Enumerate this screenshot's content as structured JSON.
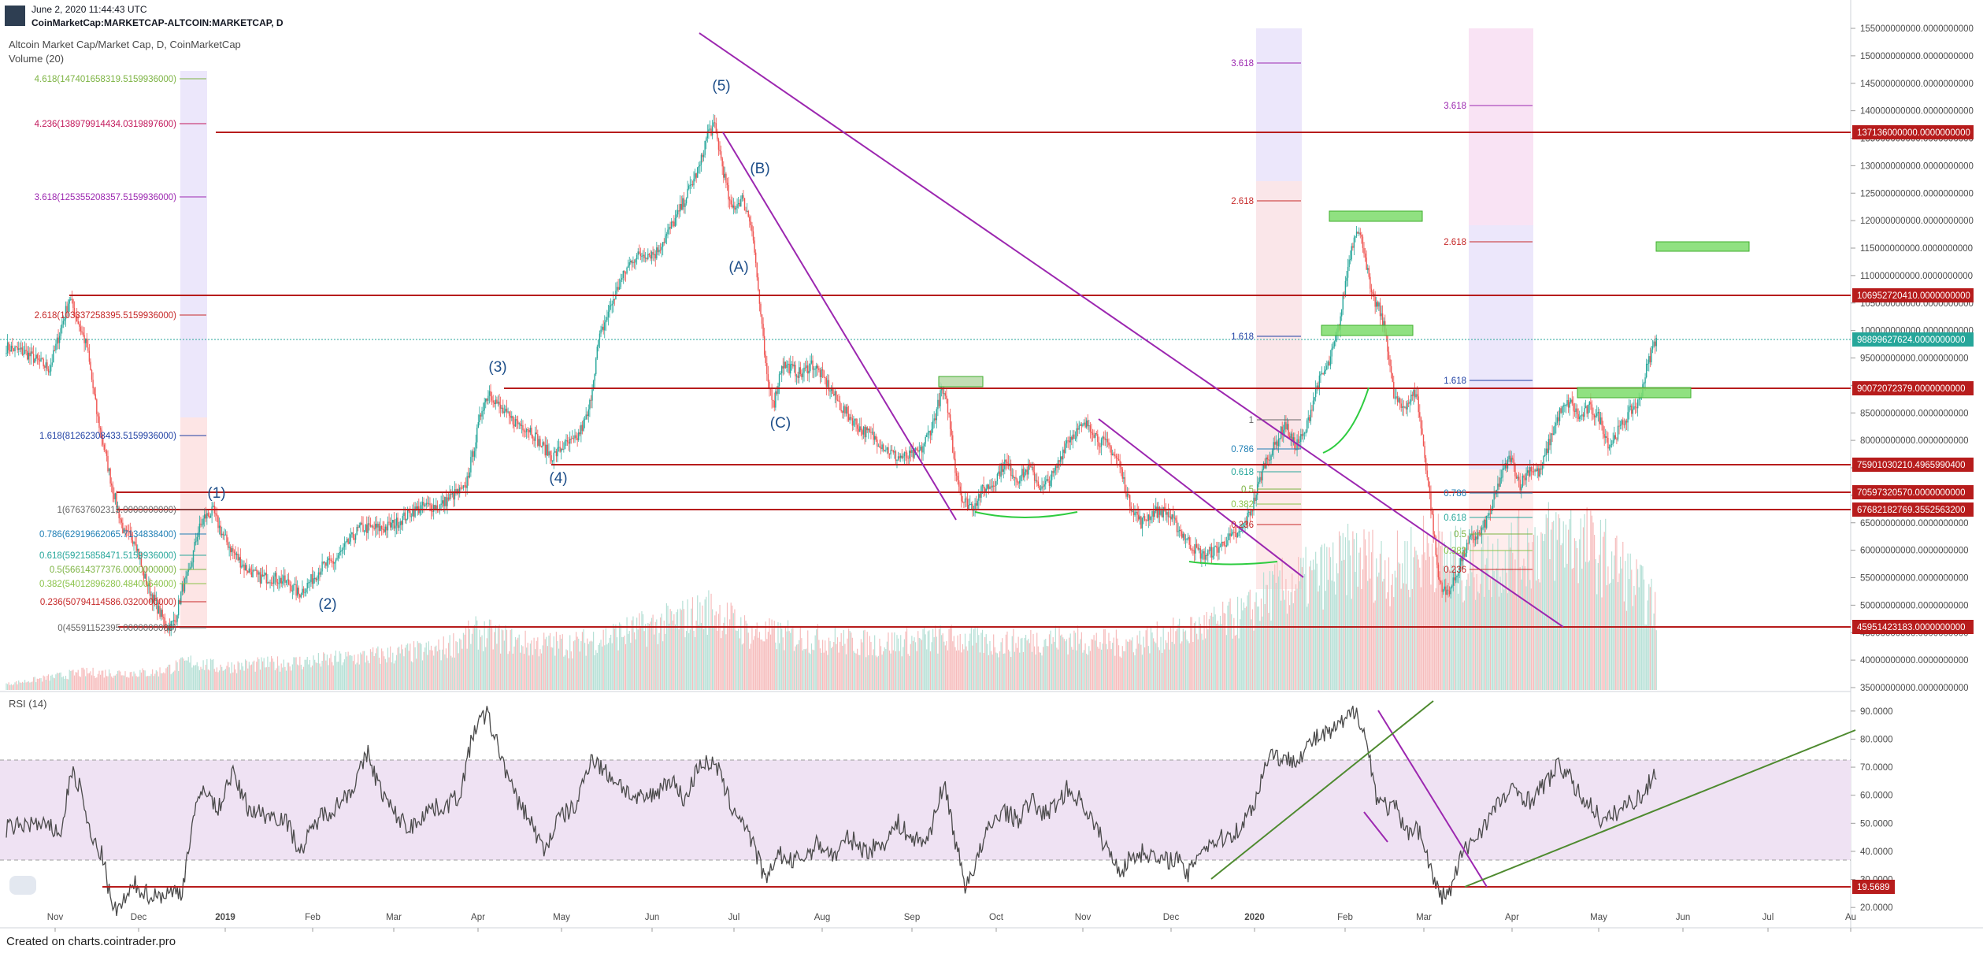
{
  "header": {
    "date": "June 2, 2020 11:44:43 UTC",
    "symbol": "CoinMarketCap:MARKETCAP-ALTCOIN:MARKETCAP, D"
  },
  "footer": "Created on charts.cointrader.pro",
  "colors": {
    "up": "#26a69a",
    "down": "#ef5350",
    "level": "#b71c1c",
    "trend": "#9c27b0",
    "rsi_trend": "#4e8a2f",
    "rsi_band": "#e8d5ee",
    "zone": "#7ddc6b"
  },
  "chart_data": [
    {
      "type": "candlestick",
      "title": "Altcoin Market Cap/Market Cap, D, CoinMarketCap",
      "volume_label": "Volume (20)",
      "x_ticks": [
        "Nov",
        "Dec",
        "2019",
        "Feb",
        "Mar",
        "Apr",
        "May",
        "Jun",
        "Jul",
        "Aug",
        "Sep",
        "Oct",
        "Nov",
        "Dec",
        "2020",
        "Feb",
        "Mar",
        "Apr",
        "May",
        "Jun",
        "Jul",
        "Au"
      ],
      "y_range": [
        3500000000,
        155000000000
      ],
      "y_ticks": [
        "155000000000.0000000000",
        "150000000000.0000000000",
        "145000000000.0000000000",
        "140000000000.0000000000",
        "135000000000.0000000000",
        "130000000000.0000000000",
        "125000000000.0000000000",
        "120000000000.0000000000",
        "115000000000.0000000000",
        "110000000000.0000000000",
        "105000000000.0000000000",
        "100000000000.0000000000",
        "95000000000.0000000000",
        "90000000000.0000000000",
        "85000000000.0000000000",
        "80000000000.0000000000",
        "75000000000.0000000000",
        "70000000000.0000000000",
        "65000000000.0000000000",
        "60000000000.0000000000",
        "55000000000.0000000000",
        "50000000000.0000000000",
        "45000000000.0000000000",
        "40000000000.0000000000",
        "35000000000.0000000000"
      ],
      "price_path": [
        [
          0,
          97
        ],
        [
          15,
          96
        ],
        [
          35,
          93
        ],
        [
          51,
          106
        ],
        [
          65,
          97
        ],
        [
          73,
          85
        ],
        [
          85,
          72
        ],
        [
          95,
          63
        ],
        [
          104,
          62
        ],
        [
          110,
          56
        ],
        [
          117,
          52
        ],
        [
          123,
          49
        ],
        [
          130,
          46
        ],
        [
          136,
          47
        ],
        [
          142,
          53
        ],
        [
          148,
          56
        ],
        [
          154,
          63
        ],
        [
          160,
          66
        ],
        [
          167,
          67
        ],
        [
          174,
          63
        ],
        [
          182,
          60
        ],
        [
          192,
          57
        ],
        [
          204,
          55
        ],
        [
          216,
          55
        ],
        [
          228,
          54
        ],
        [
          236,
          52
        ],
        [
          244,
          54
        ],
        [
          255,
          57
        ],
        [
          265,
          58
        ],
        [
          275,
          61
        ],
        [
          285,
          64
        ],
        [
          295,
          64
        ],
        [
          305,
          64
        ],
        [
          315,
          65
        ],
        [
          327,
          67
        ],
        [
          338,
          68
        ],
        [
          350,
          68
        ],
        [
          360,
          70
        ],
        [
          370,
          71
        ],
        [
          378,
          79
        ],
        [
          384,
          86
        ],
        [
          390,
          89
        ],
        [
          398,
          86
        ],
        [
          406,
          84
        ],
        [
          414,
          83
        ],
        [
          423,
          82
        ],
        [
          432,
          79
        ],
        [
          441,
          77
        ],
        [
          450,
          79
        ],
        [
          460,
          80
        ],
        [
          470,
          85
        ],
        [
          478,
          98
        ],
        [
          487,
          104
        ],
        [
          496,
          109
        ],
        [
          505,
          113
        ],
        [
          514,
          114
        ],
        [
          524,
          114
        ],
        [
          532,
          117
        ],
        [
          542,
          121
        ],
        [
          552,
          126
        ],
        [
          560,
          130
        ],
        [
          566,
          136
        ],
        [
          572,
          137
        ],
        [
          578,
          130
        ],
        [
          585,
          122
        ],
        [
          594,
          124
        ],
        [
          602,
          119
        ],
        [
          608,
          105
        ],
        [
          614,
          91
        ],
        [
          620,
          87
        ],
        [
          626,
          94
        ],
        [
          634,
          93
        ],
        [
          642,
          92
        ],
        [
          650,
          94
        ],
        [
          658,
          92
        ],
        [
          666,
          89
        ],
        [
          674,
          86
        ],
        [
          682,
          84
        ],
        [
          690,
          82
        ],
        [
          698,
          81
        ],
        [
          708,
          79
        ],
        [
          718,
          77
        ],
        [
          728,
          77
        ],
        [
          738,
          78
        ],
        [
          748,
          83
        ],
        [
          755,
          89
        ],
        [
          760,
          86
        ],
        [
          766,
          75
        ],
        [
          772,
          69
        ],
        [
          780,
          68
        ],
        [
          788,
          71
        ],
        [
          796,
          72
        ],
        [
          806,
          76
        ],
        [
          816,
          73
        ],
        [
          826,
          75
        ],
        [
          836,
          71
        ],
        [
          846,
          74
        ],
        [
          856,
          80
        ],
        [
          866,
          82
        ],
        [
          874,
          83
        ],
        [
          882,
          80
        ],
        [
          890,
          79
        ],
        [
          898,
          76
        ],
        [
          906,
          69
        ],
        [
          916,
          65
        ],
        [
          926,
          67
        ],
        [
          936,
          67
        ],
        [
          946,
          64
        ],
        [
          956,
          61
        ],
        [
          966,
          59
        ],
        [
          976,
          60
        ],
        [
          986,
          62
        ],
        [
          996,
          63
        ],
        [
          1006,
          68
        ],
        [
          1016,
          76
        ],
        [
          1024,
          79
        ],
        [
          1032,
          83
        ],
        [
          1040,
          79
        ],
        [
          1048,
          81
        ],
        [
          1058,
          90
        ],
        [
          1068,
          94
        ],
        [
          1076,
          101
        ],
        [
          1084,
          113
        ],
        [
          1090,
          119
        ],
        [
          1096,
          115
        ],
        [
          1102,
          106
        ],
        [
          1108,
          104
        ],
        [
          1114,
          99
        ],
        [
          1120,
          88
        ],
        [
          1126,
          86
        ],
        [
          1132,
          87
        ],
        [
          1138,
          89
        ],
        [
          1144,
          79
        ],
        [
          1150,
          68
        ],
        [
          1156,
          55
        ],
        [
          1162,
          52
        ],
        [
          1168,
          54
        ],
        [
          1174,
          58
        ],
        [
          1182,
          62
        ],
        [
          1190,
          63
        ],
        [
          1198,
          67
        ],
        [
          1206,
          73
        ],
        [
          1214,
          77
        ],
        [
          1222,
          72
        ],
        [
          1230,
          75
        ],
        [
          1238,
          74
        ],
        [
          1246,
          80
        ],
        [
          1254,
          85
        ],
        [
          1262,
          87
        ],
        [
          1270,
          84
        ],
        [
          1278,
          86
        ],
        [
          1286,
          84
        ],
        [
          1294,
          79
        ],
        [
          1302,
          82
        ],
        [
          1310,
          85
        ],
        [
          1318,
          87
        ],
        [
          1324,
          93
        ],
        [
          1332,
          99
        ]
      ],
      "volume_range": [
        0,
        40
      ],
      "volume_path": [
        [
          0,
          1
        ],
        [
          60,
          3
        ],
        [
          120,
          3
        ],
        [
          150,
          5
        ],
        [
          170,
          4
        ],
        [
          250,
          5
        ],
        [
          300,
          6
        ],
        [
          350,
          7
        ],
        [
          380,
          10
        ],
        [
          420,
          8
        ],
        [
          460,
          8
        ],
        [
          500,
          10
        ],
        [
          540,
          12
        ],
        [
          570,
          14
        ],
        [
          600,
          10
        ],
        [
          650,
          9
        ],
        [
          700,
          8
        ],
        [
          760,
          9
        ],
        [
          800,
          8
        ],
        [
          850,
          9
        ],
        [
          900,
          8
        ],
        [
          950,
          10
        ],
        [
          1000,
          13
        ],
        [
          1020,
          17
        ],
        [
          1060,
          20
        ],
        [
          1090,
          23
        ],
        [
          1120,
          21
        ],
        [
          1150,
          25
        ],
        [
          1180,
          21
        ],
        [
          1220,
          24
        ],
        [
          1260,
          27
        ],
        [
          1300,
          22
        ],
        [
          1332,
          14
        ]
      ],
      "wave_labels": [
        "(1)",
        "(2)",
        "(3)",
        "(4)",
        "(5)",
        "(A)",
        "(B)",
        "(C)"
      ],
      "level_badges": [
        "137136000000.0000000000",
        "106952720410.0000000000",
        "98899627624.0000000000",
        "90072072379.0000000000",
        "75901030210.4965990400",
        "70597320570.0000000000",
        "67682182769.3552563200",
        "45951423183.0000000000"
      ],
      "fib_2018": [
        "4.618(147401658319.5159936000)",
        "4.236(138979914434.0319897600)",
        "3.618(125355208357.5159936000)",
        "2.618(103337258395.5159936000)",
        "1.618(81262308433.5159936000)",
        "1(67637602315.0000000000)",
        "0.786(62919662065.7134838400)",
        "0.618(59215858471.5159936000)",
        "0.5(56614377376.0000000000)",
        "0.382(54012896280.4840064000)",
        "0.236(50794114586.0320000000)",
        "0(45591152395.0000000000)"
      ],
      "fib_2020a": [
        "3.618",
        "2.618",
        "1.618",
        "1",
        "0.786",
        "0.618",
        "0.5",
        "0.382",
        "0.236"
      ],
      "fib_2020b": [
        "3.618",
        "2.618",
        "1.618",
        "0.786",
        "0.618",
        "0.5",
        "0.382",
        "0.236"
      ]
    },
    {
      "type": "line",
      "title": "RSI (14)",
      "y_range": [
        15,
        95
      ],
      "y_ticks": [
        "90.0000",
        "80.0000",
        "70.0000",
        "60.0000",
        "50.0000",
        "40.0000",
        "30.0000",
        "20.0000"
      ],
      "band": [
        30,
        70
      ],
      "support_badge": "19.5689",
      "rsi_path": [
        [
          0,
          48
        ],
        [
          20,
          50
        ],
        [
          45,
          47
        ],
        [
          52,
          69
        ],
        [
          60,
          62
        ],
        [
          68,
          45
        ],
        [
          78,
          38
        ],
        [
          86,
          18
        ],
        [
          95,
          22
        ],
        [
          104,
          28
        ],
        [
          110,
          26
        ],
        [
          118,
          24
        ],
        [
          130,
          25
        ],
        [
          142,
          26
        ],
        [
          150,
          50
        ],
        [
          160,
          64
        ],
        [
          170,
          54
        ],
        [
          182,
          68
        ],
        [
          196,
          55
        ],
        [
          210,
          53
        ],
        [
          224,
          52
        ],
        [
          238,
          40
        ],
        [
          252,
          52
        ],
        [
          266,
          56
        ],
        [
          280,
          63
        ],
        [
          292,
          75
        ],
        [
          300,
          64
        ],
        [
          312,
          54
        ],
        [
          326,
          48
        ],
        [
          340,
          55
        ],
        [
          354,
          56
        ],
        [
          366,
          60
        ],
        [
          378,
          84
        ],
        [
          388,
          89
        ],
        [
          398,
          76
        ],
        [
          410,
          60
        ],
        [
          422,
          52
        ],
        [
          434,
          40
        ],
        [
          446,
          52
        ],
        [
          460,
          56
        ],
        [
          472,
          74
        ],
        [
          484,
          68
        ],
        [
          496,
          64
        ],
        [
          508,
          58
        ],
        [
          522,
          60
        ],
        [
          536,
          66
        ],
        [
          548,
          58
        ],
        [
          560,
          72
        ],
        [
          574,
          70
        ],
        [
          584,
          57
        ],
        [
          596,
          50
        ],
        [
          608,
          36
        ],
        [
          614,
          28
        ],
        [
          622,
          40
        ],
        [
          632,
          36
        ],
        [
          644,
          38
        ],
        [
          656,
          43
        ],
        [
          668,
          38
        ],
        [
          680,
          45
        ],
        [
          694,
          40
        ],
        [
          708,
          43
        ],
        [
          720,
          50
        ],
        [
          732,
          44
        ],
        [
          744,
          44
        ],
        [
          752,
          58
        ],
        [
          758,
          63
        ],
        [
          766,
          44
        ],
        [
          774,
          28
        ],
        [
          782,
          35
        ],
        [
          792,
          47
        ],
        [
          804,
          55
        ],
        [
          816,
          51
        ],
        [
          828,
          58
        ],
        [
          838,
          53
        ],
        [
          846,
          56
        ],
        [
          856,
          62
        ],
        [
          868,
          58
        ],
        [
          880,
          48
        ],
        [
          892,
          38
        ],
        [
          900,
          33
        ],
        [
          908,
          38
        ],
        [
          920,
          40
        ],
        [
          932,
          36
        ],
        [
          944,
          38
        ],
        [
          954,
          31
        ],
        [
          962,
          40
        ],
        [
          972,
          43
        ],
        [
          984,
          45
        ],
        [
          996,
          48
        ],
        [
          1008,
          58
        ],
        [
          1020,
          76
        ],
        [
          1032,
          72
        ],
        [
          1044,
          74
        ],
        [
          1056,
          80
        ],
        [
          1068,
          82
        ],
        [
          1080,
          86
        ],
        [
          1090,
          91
        ],
        [
          1098,
          79
        ],
        [
          1106,
          60
        ],
        [
          1114,
          56
        ],
        [
          1122,
          55
        ],
        [
          1130,
          46
        ],
        [
          1138,
          50
        ],
        [
          1146,
          40
        ],
        [
          1152,
          30
        ],
        [
          1158,
          24
        ],
        [
          1166,
          26
        ],
        [
          1174,
          38
        ],
        [
          1184,
          44
        ],
        [
          1194,
          50
        ],
        [
          1206,
          58
        ],
        [
          1218,
          62
        ],
        [
          1230,
          58
        ],
        [
          1242,
          64
        ],
        [
          1254,
          71
        ],
        [
          1262,
          66
        ],
        [
          1270,
          60
        ],
        [
          1280,
          56
        ],
        [
          1290,
          50
        ],
        [
          1300,
          54
        ],
        [
          1312,
          58
        ],
        [
          1322,
          60
        ],
        [
          1330,
          68
        ]
      ]
    }
  ]
}
